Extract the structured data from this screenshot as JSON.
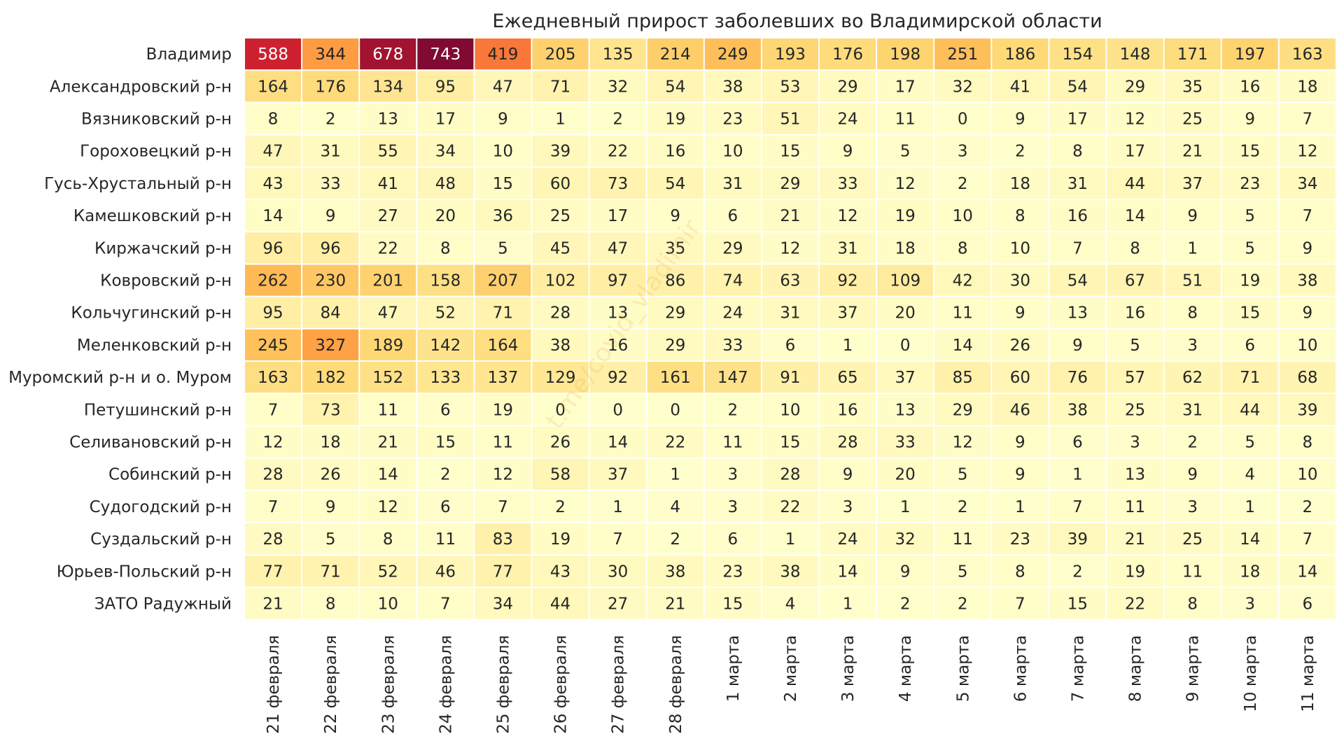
{
  "chart_data": {
    "type": "heatmap",
    "title": "Ежедневный прирост заболевших во Владимирской области",
    "watermark": "t.me/covid_vladimir",
    "columns": [
      "21 февраля",
      "22 февраля",
      "23 февраля",
      "24 февраля",
      "25 февраля",
      "26 февраля",
      "27 февраля",
      "28 февраля",
      "1 марта",
      "2 марта",
      "3 марта",
      "4 марта",
      "5 марта",
      "6 марта",
      "7 марта",
      "8 марта",
      "9 марта",
      "10 марта",
      "11 марта"
    ],
    "rows": [
      "Владимир",
      "Александровский р-н",
      "Вязниковский р-н",
      "Гороховецкий р-н",
      "Гусь-Хрустальный р-н",
      "Камешковский р-н",
      "Киржачский р-н",
      "Ковровский р-н",
      "Кольчугинский р-н",
      "Меленковский р-н",
      "Муромский р-н и о. Муром",
      "Петушинский р-н",
      "Селивановский р-н",
      "Собинский р-н",
      "Судогодский р-н",
      "Суздальский р-н",
      "Юрьев-Польский р-н",
      "ЗАТО Радужный"
    ],
    "values": [
      [
        588,
        344,
        678,
        743,
        419,
        205,
        135,
        214,
        249,
        193,
        176,
        198,
        251,
        186,
        154,
        148,
        171,
        197,
        163
      ],
      [
        164,
        176,
        134,
        95,
        47,
        71,
        32,
        54,
        38,
        53,
        29,
        17,
        32,
        41,
        54,
        29,
        35,
        16,
        18
      ],
      [
        8,
        2,
        13,
        17,
        9,
        1,
        2,
        19,
        23,
        51,
        24,
        11,
        0,
        9,
        17,
        12,
        25,
        9,
        7
      ],
      [
        47,
        31,
        55,
        34,
        10,
        39,
        22,
        16,
        10,
        15,
        9,
        5,
        3,
        2,
        8,
        17,
        21,
        15,
        12
      ],
      [
        43,
        33,
        41,
        48,
        15,
        60,
        73,
        54,
        31,
        29,
        33,
        12,
        2,
        18,
        31,
        44,
        37,
        23,
        34
      ],
      [
        14,
        9,
        27,
        20,
        36,
        25,
        17,
        9,
        6,
        21,
        12,
        19,
        10,
        8,
        16,
        14,
        9,
        5,
        7
      ],
      [
        96,
        96,
        22,
        8,
        5,
        45,
        47,
        35,
        29,
        12,
        31,
        18,
        8,
        10,
        7,
        8,
        1,
        5,
        9
      ],
      [
        262,
        230,
        201,
        158,
        207,
        102,
        97,
        86,
        74,
        63,
        92,
        109,
        42,
        30,
        54,
        67,
        51,
        19,
        38
      ],
      [
        95,
        84,
        47,
        52,
        71,
        28,
        13,
        29,
        24,
        31,
        37,
        20,
        11,
        9,
        13,
        16,
        8,
        15,
        9
      ],
      [
        245,
        327,
        189,
        142,
        164,
        38,
        16,
        29,
        33,
        6,
        1,
        0,
        14,
        26,
        9,
        5,
        3,
        6,
        10
      ],
      [
        163,
        182,
        152,
        133,
        137,
        129,
        92,
        161,
        147,
        91,
        65,
        37,
        85,
        60,
        76,
        57,
        62,
        71,
        68
      ],
      [
        7,
        73,
        11,
        6,
        19,
        0,
        0,
        0,
        2,
        10,
        16,
        13,
        29,
        46,
        38,
        25,
        31,
        44,
        39
      ],
      [
        12,
        18,
        21,
        15,
        11,
        26,
        14,
        22,
        11,
        15,
        28,
        33,
        12,
        9,
        6,
        3,
        2,
        5,
        8
      ],
      [
        28,
        26,
        14,
        2,
        12,
        58,
        37,
        1,
        3,
        28,
        9,
        20,
        5,
        9,
        1,
        13,
        9,
        4,
        10
      ],
      [
        7,
        9,
        12,
        6,
        7,
        2,
        1,
        4,
        3,
        22,
        3,
        1,
        2,
        1,
        7,
        11,
        3,
        1,
        2
      ],
      [
        28,
        5,
        8,
        11,
        83,
        19,
        7,
        2,
        6,
        1,
        24,
        32,
        11,
        23,
        39,
        21,
        25,
        14,
        7
      ],
      [
        77,
        71,
        52,
        46,
        77,
        43,
        30,
        38,
        23,
        38,
        14,
        9,
        5,
        8,
        2,
        19,
        11,
        18,
        14
      ],
      [
        21,
        8,
        10,
        7,
        34,
        44,
        27,
        21,
        15,
        4,
        1,
        2,
        2,
        7,
        15,
        22,
        8,
        3,
        6
      ]
    ],
    "colormap": "YlOrRd",
    "vmax": 743,
    "grid": false,
    "legend": "none"
  }
}
